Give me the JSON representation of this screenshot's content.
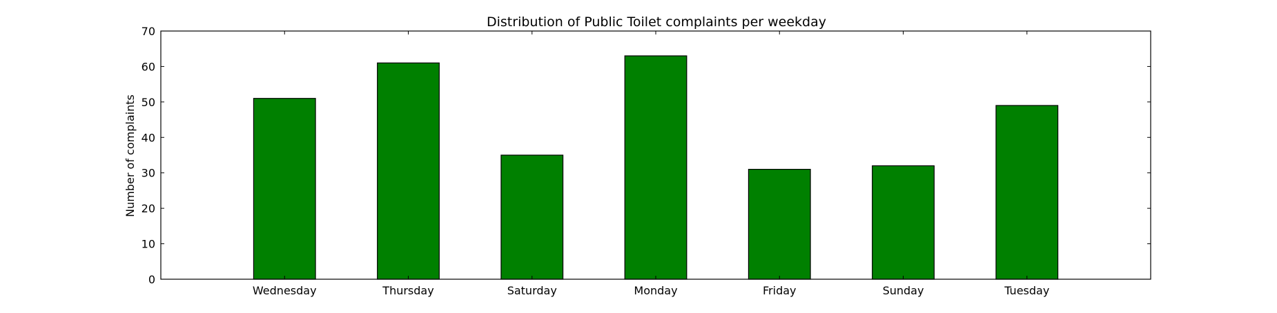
{
  "chart_data": {
    "type": "bar",
    "title": "Distribution of  Public Toilet complaints per weekday",
    "xlabel": "",
    "ylabel": "Number of complaints",
    "categories": [
      "Wednesday",
      "Thursday",
      "Saturday",
      "Monday",
      "Friday",
      "Sunday",
      "Tuesday"
    ],
    "values": [
      51,
      61,
      35,
      63,
      31,
      32,
      49
    ],
    "ylim": [
      0,
      70
    ],
    "yticks": [
      0,
      10,
      20,
      30,
      40,
      50,
      60,
      70
    ],
    "grid": false,
    "legend": "none",
    "bar_color": "#008000",
    "edge_color": "#000000"
  }
}
